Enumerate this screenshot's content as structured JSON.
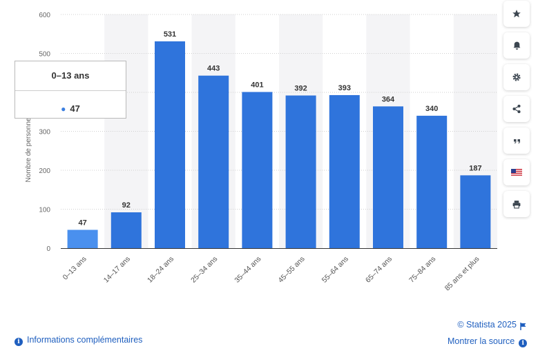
{
  "chart_data": {
    "type": "bar",
    "categories": [
      "0–13 ans",
      "14–17 ans",
      "18–24 ans",
      "25–34 ans",
      "35–44 ans",
      "45–55 ans",
      "55–64 ans",
      "65–74 ans",
      "75–84 ans",
      "85 ans et plus"
    ],
    "values": [
      47,
      92,
      531,
      443,
      401,
      392,
      393,
      364,
      340,
      187
    ],
    "ylabel": "Nombre de personnes",
    "xlabel": "",
    "ylim": [
      0,
      600
    ],
    "yticks": [
      0,
      100,
      200,
      300,
      400,
      500,
      600
    ],
    "grid": true,
    "highlighted_index": 0,
    "colors": {
      "bar": "#2f74dc",
      "bar_highlight": "#4a90ee",
      "grid": "#cfcfcf",
      "band": "#f4f4f6"
    }
  },
  "tooltip": {
    "title": "0–13 ans",
    "value": "47"
  },
  "sidebar": {
    "buttons": [
      {
        "name": "star-icon"
      },
      {
        "name": "bell-icon"
      },
      {
        "name": "gear-icon"
      },
      {
        "name": "share-icon"
      },
      {
        "name": "quote-icon"
      },
      {
        "name": "flag-us-icon"
      },
      {
        "name": "print-icon"
      }
    ]
  },
  "footer": {
    "copyright": "© Statista 2025",
    "info_link": "Informations complémentaires",
    "source_link": "Montrer la source"
  }
}
